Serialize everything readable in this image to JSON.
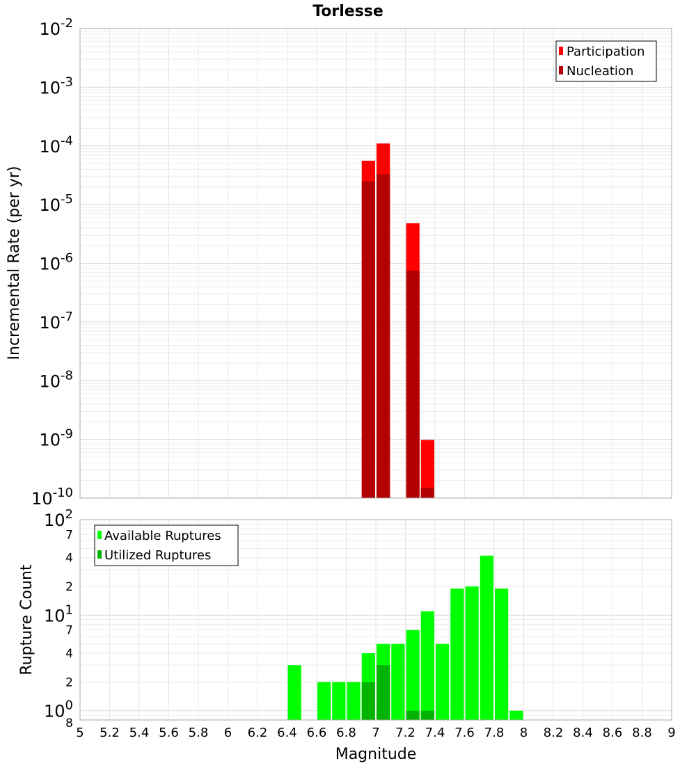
{
  "chart_data": [
    {
      "type": "bar",
      "title": "Torlesse",
      "xlabel": "",
      "ylabel": "Incremental Rate (per yr)",
      "xlim": [
        5,
        9
      ],
      "ylim": [
        1e-10,
        0.01
      ],
      "y_scale": "log",
      "grid": true,
      "legend_position": "top-right",
      "bin_width": 0.1,
      "y_tick_labels": [
        {
          "base": "10",
          "exp": "-2"
        },
        {
          "base": "10",
          "exp": "-3"
        },
        {
          "base": "10",
          "exp": "-4"
        },
        {
          "base": "10",
          "exp": "-5"
        },
        {
          "base": "10",
          "exp": "-6"
        },
        {
          "base": "10",
          "exp": "-7"
        },
        {
          "base": "10",
          "exp": "-8"
        },
        {
          "base": "10",
          "exp": "-9"
        },
        {
          "base": "10",
          "exp": "-10"
        }
      ],
      "series": [
        {
          "name": "Participation",
          "color": "#ff0000",
          "x": [
            6.95,
            7.05,
            7.25,
            7.35
          ],
          "values": [
            5.6e-05,
            0.00011,
            4.8e-06,
            9.8e-10
          ]
        },
        {
          "name": "Nucleation",
          "color": "#b30000",
          "x": [
            6.95,
            7.05,
            7.25,
            7.35
          ],
          "values": [
            2.5e-05,
            3.3e-05,
            7.5e-07,
            1.5e-10
          ]
        }
      ]
    },
    {
      "type": "bar",
      "title": "",
      "xlabel": "Magnitude",
      "ylabel": "Rupture Count",
      "xlim": [
        5,
        9
      ],
      "ylim": [
        0.8,
        100
      ],
      "y_scale": "log",
      "grid": true,
      "legend_position": "top-left",
      "bin_width": 0.1,
      "x_ticks": [
        "5",
        "5.2",
        "5.4",
        "5.6",
        "5.8",
        "6",
        "6.2",
        "6.4",
        "6.6",
        "6.8",
        "7",
        "7.2",
        "7.4",
        "7.6",
        "7.8",
        "8",
        "8.2",
        "8.4",
        "8.6",
        "8.8",
        "9"
      ],
      "y_tick_labels": [
        {
          "value": 100,
          "base": "10",
          "exp": "2"
        },
        {
          "value": 70,
          "base": "7",
          "exp": ""
        },
        {
          "value": 40,
          "base": "4",
          "exp": ""
        },
        {
          "value": 20,
          "base": "2",
          "exp": ""
        },
        {
          "value": 10,
          "base": "10",
          "exp": "1"
        },
        {
          "value": 7,
          "base": "7",
          "exp": ""
        },
        {
          "value": 4,
          "base": "4",
          "exp": ""
        },
        {
          "value": 2,
          "base": "2",
          "exp": ""
        },
        {
          "value": 1,
          "base": "10",
          "exp": "0"
        },
        {
          "value": 0.8,
          "base": "8",
          "exp": ""
        }
      ],
      "series": [
        {
          "name": "Available Ruptures",
          "color": "#00ff00",
          "x": [
            6.45,
            6.65,
            6.75,
            6.85,
            6.95,
            7.05,
            7.15,
            7.25,
            7.35,
            7.45,
            7.55,
            7.65,
            7.75,
            7.85,
            7.95
          ],
          "values": [
            3,
            2,
            2,
            2,
            4,
            5,
            5,
            7,
            11,
            5,
            19,
            20,
            42,
            19,
            1
          ]
        },
        {
          "name": "Utilized Ruptures",
          "color": "#00b300",
          "x": [
            6.95,
            7.05,
            7.25,
            7.35
          ],
          "values": [
            2,
            3,
            1,
            1
          ]
        }
      ]
    }
  ]
}
